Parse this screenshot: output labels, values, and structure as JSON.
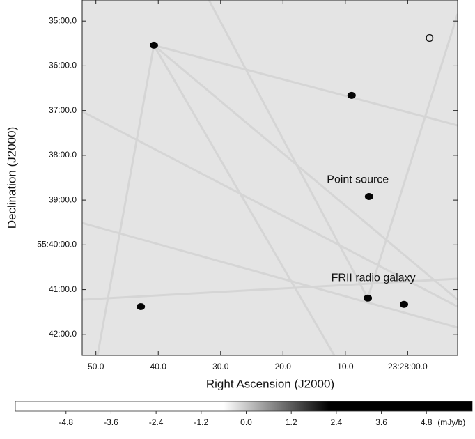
{
  "chart_data": {
    "type": "image",
    "xlabel": "Right Ascension (J2000)",
    "ylabel": "Declination (J2000)",
    "xlim": [
      52.2,
      -8.0
    ],
    "ylim": [
      34.53,
      42.47
    ],
    "xticks": [
      {
        "value": 50,
        "label": "50.0"
      },
      {
        "value": 40,
        "label": "40.0"
      },
      {
        "value": 30,
        "label": "30.0"
      },
      {
        "value": 20,
        "label": "20.0"
      },
      {
        "value": 10,
        "label": "10.0"
      },
      {
        "value": 0,
        "label": "23:28:00.0"
      }
    ],
    "yticks": [
      {
        "value": 35,
        "label": "35:00.0"
      },
      {
        "value": 36,
        "label": "36:00.0"
      },
      {
        "value": 37,
        "label": "37:00.0"
      },
      {
        "value": 38,
        "label": "38:00.0"
      },
      {
        "value": 39,
        "label": "39:00.0"
      },
      {
        "value": 40,
        "label": "-55:40:00.0"
      },
      {
        "value": 41,
        "label": "41:00.0"
      },
      {
        "value": 42,
        "label": "42:00.0"
      }
    ],
    "grid": false,
    "sources": {
      "x": [
        40.7,
        9.0,
        6.2,
        6.4,
        0.6,
        42.8
      ],
      "y": [
        35.54,
        36.66,
        38.92,
        41.19,
        41.33,
        41.38
      ]
    },
    "annotations": [
      {
        "text": "Point source",
        "x": 8.0,
        "y": 38.55
      },
      {
        "text": "FRII radio galaxy",
        "x": 5.5,
        "y": 40.75
      },
      {
        "text": "O",
        "x": -3.5,
        "y": 35.4
      }
    ],
    "colorbar": {
      "clim": [
        -6.15,
        6.02
      ],
      "gray_range": [
        -0.6,
        2.2
      ],
      "ticks": [
        -4.8,
        -3.6,
        -2.4,
        -1.2,
        {
          "value": 0,
          "label": "0.0"
        },
        1.2,
        2.4,
        3.6,
        4.8
      ],
      "unit": "(mJy/b)"
    }
  }
}
